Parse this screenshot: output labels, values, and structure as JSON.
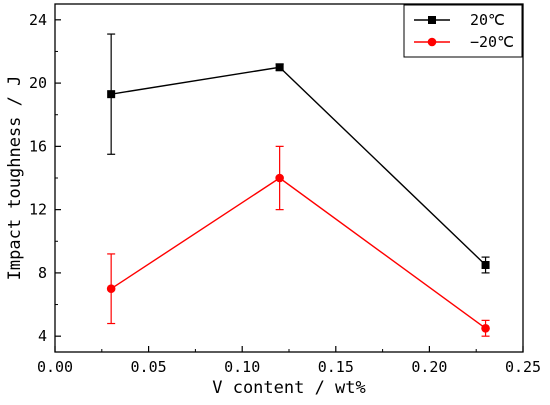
{
  "chart_data": {
    "type": "line",
    "xlabel": "V content / wt%",
    "ylabel": "Impact toughness / J",
    "xlim": [
      0.0,
      0.25
    ],
    "ylim": [
      3.0,
      25.0
    ],
    "x_ticks": [
      "0.00",
      "0.05",
      "0.10",
      "0.15",
      "0.20",
      "0.25"
    ],
    "y_ticks": [
      "4",
      "8",
      "12",
      "16",
      "20",
      "24"
    ],
    "x": [
      0.03,
      0.12,
      0.23
    ],
    "series": [
      {
        "name": "20℃",
        "color": "#000000",
        "marker": "square",
        "values": [
          19.3,
          21.0,
          8.5
        ],
        "errors": [
          3.8,
          0.2,
          0.5
        ]
      },
      {
        "name": "−20℃",
        "color": "#ff0000",
        "marker": "circle",
        "values": [
          7.0,
          14.0,
          4.5
        ],
        "errors": [
          2.2,
          2.0,
          0.5
        ]
      }
    ],
    "legend_position": "top-right",
    "grid": false
  }
}
